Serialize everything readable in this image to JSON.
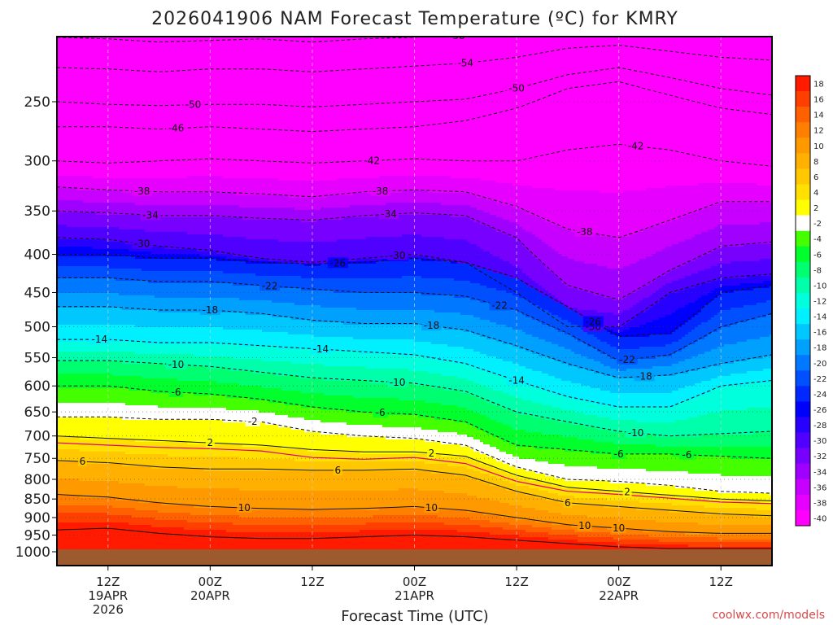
{
  "title": "2026041906 NAM Forecast Temperature (ºC) for KMRY",
  "credit": "coolwx.com/models",
  "chart_data": {
    "type": "heatmap",
    "title": "2026041906 NAM Forecast Temperature (ºC) for KMRY",
    "xlabel": "Forecast Time (UTC)",
    "ylabel": "",
    "y_scale": "log-pressure (hPa, inverted)",
    "ylim": [
      1000,
      200
    ],
    "xlim_hours": [
      6,
      90
    ],
    "y_ticks": [
      250,
      300,
      350,
      400,
      450,
      500,
      550,
      600,
      650,
      700,
      750,
      800,
      850,
      900,
      950,
      1000
    ],
    "x_ticks": [
      {
        "hour": 12,
        "lines": [
          "12Z",
          "19APR",
          "2026"
        ]
      },
      {
        "hour": 24,
        "lines": [
          "00Z",
          "20APR"
        ]
      },
      {
        "hour": 36,
        "lines": [
          "12Z"
        ]
      },
      {
        "hour": 48,
        "lines": [
          "00Z",
          "21APR"
        ]
      },
      {
        "hour": 60,
        "lines": [
          "12Z"
        ]
      },
      {
        "hour": 72,
        "lines": [
          "00Z",
          "22APR"
        ]
      },
      {
        "hour": 84,
        "lines": [
          "12Z"
        ]
      }
    ],
    "grid": true,
    "colorbar": {
      "placement": "right",
      "levels": [
        18,
        16,
        14,
        12,
        10,
        8,
        6,
        4,
        2,
        -2,
        -4,
        -6,
        -8,
        -10,
        -12,
        -14,
        -16,
        -18,
        -20,
        -22,
        -24,
        -26,
        -28,
        -30,
        -32,
        -34,
        -36,
        -38,
        -40
      ],
      "colors": [
        "#ff1a00",
        "#ff3f00",
        "#ff6000",
        "#ff7f00",
        "#ff9900",
        "#ffb000",
        "#ffc800",
        "#ffe000",
        "#ffff00",
        "#ffffff",
        "#44ff00",
        "#00ff2c",
        "#00ff70",
        "#00ffaa",
        "#00ffdd",
        "#00f0ff",
        "#00c8ff",
        "#00a0ff",
        "#0078ff",
        "#0050ff",
        "#0028ff",
        "#0000ff",
        "#2800ff",
        "#5000ff",
        "#7800ff",
        "#a000ff",
        "#c800ff",
        "#e600ff",
        "#ff00ff"
      ]
    },
    "ground_color": "#9c5a2e",
    "series": [
      {
        "hours": [
          6,
          12,
          18,
          24,
          30,
          36,
          42,
          48,
          54,
          60,
          66,
          72,
          78,
          84,
          90
        ],
        "isotherm_profile_hPa_at_minus30": [
          380,
          382,
          390,
          395,
          405,
          410,
          405,
          400,
          410,
          450,
          500,
          500,
          450,
          430,
          425
        ]
      }
    ],
    "contour_labels": [
      "-58",
      "-54",
      "-50",
      "-50",
      "-46",
      "-42",
      "-42",
      "-38",
      "-38",
      "-38",
      "-34",
      "-34",
      "-30",
      "-30",
      "-30",
      "-26",
      "-26",
      "-22",
      "-22",
      "-22",
      "-18",
      "-18",
      "-18",
      "-14",
      "-14",
      "-14",
      "-10",
      "-10",
      "-10",
      "-6",
      "-6",
      "-6",
      "-6",
      "-2",
      "2",
      "2",
      "2",
      "6",
      "6",
      "6",
      "10",
      "10",
      "10",
      "10"
    ]
  }
}
